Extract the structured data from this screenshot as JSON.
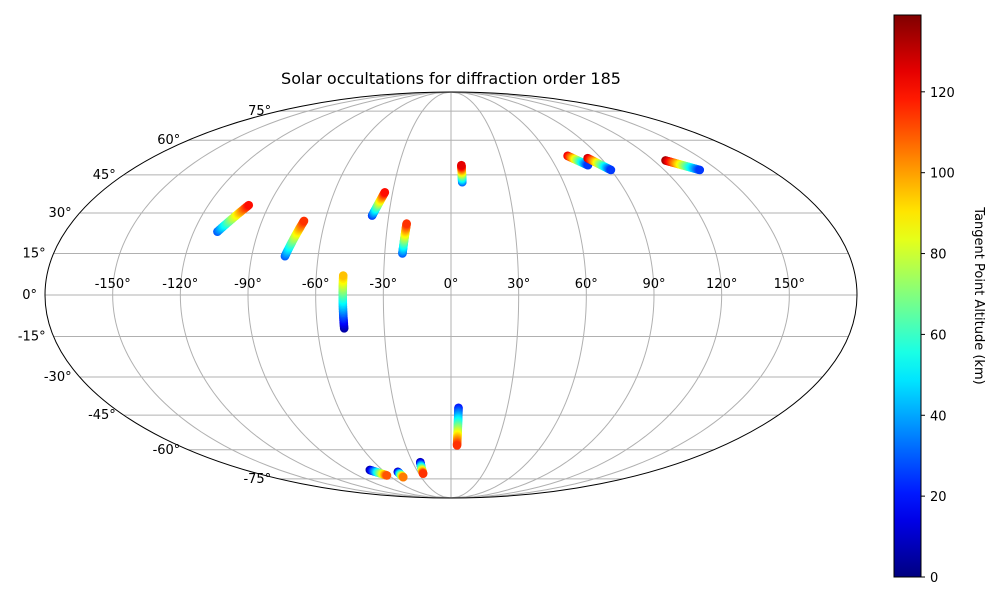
{
  "chart_data": {
    "type": "scatter",
    "projection": "mollweide",
    "title": "Solar occultations for diffraction order 185",
    "lon_ticks": [
      "-150°",
      "-120°",
      "-90°",
      "-60°",
      "-30°",
      "0°",
      "30°",
      "60°",
      "90°",
      "120°",
      "150°"
    ],
    "lat_ticks": [
      "75°",
      "60°",
      "45°",
      "30°",
      "15°",
      "0°",
      "-15°",
      "-30°",
      "-45°",
      "-60°",
      "-75°"
    ],
    "grid": true,
    "colorbar": {
      "label": "Tangent Point Altitude (km)",
      "colormap": "jet",
      "range": [
        0,
        139
      ],
      "ticks": [
        "0",
        "20",
        "40",
        "60",
        "80",
        "100",
        "120"
      ]
    },
    "tracks": [
      {
        "lon_start": -109,
        "lat_start": 23,
        "lon_end": -100,
        "lat_end": 33,
        "alt_start": 30,
        "alt_end": 120
      },
      {
        "lon_start": -75,
        "lat_start": 14,
        "lon_end": -70,
        "lat_end": 27,
        "alt_start": 30,
        "alt_end": 115
      },
      {
        "lon_start": -48,
        "lat_start": -12,
        "lon_end": -48,
        "lat_end": 7,
        "alt_start": 5,
        "alt_end": 95
      },
      {
        "lon_start": -38,
        "lat_start": 29,
        "lon_end": -34,
        "lat_end": 38,
        "alt_start": 25,
        "alt_end": 120
      },
      {
        "lon_start": -22,
        "lat_start": 15,
        "lon_end": -21,
        "lat_end": 26,
        "alt_start": 30,
        "alt_end": 115
      },
      {
        "lon_start": 6,
        "lat_start": 42,
        "lon_end": 6,
        "lat_end": 49,
        "alt_start": 30,
        "alt_end": 125
      },
      {
        "lon_start": 4,
        "lat_start": -42,
        "lon_end": 4,
        "lat_end": -58,
        "alt_start": 20,
        "alt_end": 115
      },
      {
        "lon_start": 71,
        "lat_start": 53,
        "lon_end": 79,
        "lat_end": 49,
        "alt_start": 125,
        "alt_end": 25
      },
      {
        "lon_start": 82,
        "lat_start": 52,
        "lon_end": 90,
        "lat_end": 47,
        "alt_start": 130,
        "alt_end": 25
      },
      {
        "lon_start": 127,
        "lat_start": 51,
        "lon_end": 140,
        "lat_end": 47,
        "alt_start": 135,
        "alt_end": 25
      },
      {
        "lon_start": -71,
        "lat_start": -70,
        "lon_end": -62,
        "lat_end": -73,
        "alt_start": 5,
        "alt_end": 110
      },
      {
        "lon_start": -48,
        "lat_start": -71,
        "lon_end": -48,
        "lat_end": -74,
        "alt_start": 5,
        "alt_end": 105
      },
      {
        "lon_start": -24,
        "lat_start": -66,
        "lon_end": -26,
        "lat_end": -72,
        "alt_start": 5,
        "alt_end": 115
      }
    ]
  }
}
